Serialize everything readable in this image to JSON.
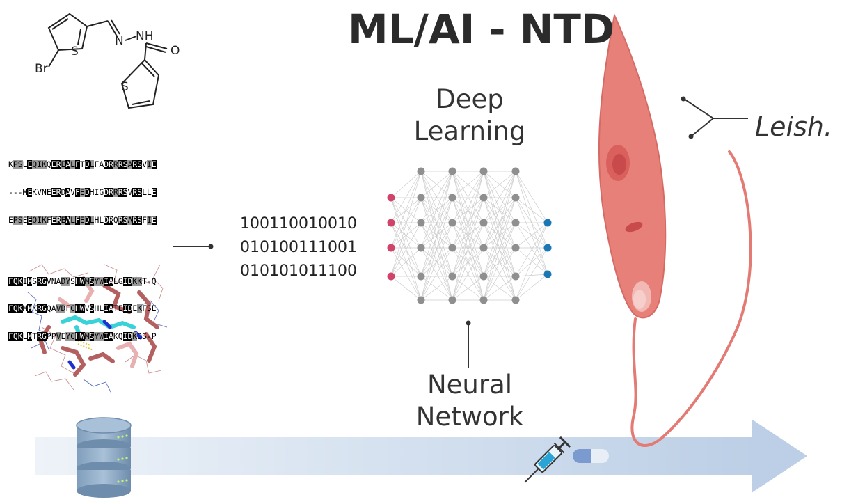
{
  "title": "ML/AI - NTD",
  "deep_learning_label": [
    "Deep",
    "Learning"
  ],
  "neural_network_label": [
    "Neural",
    "Network"
  ],
  "binary_lines": [
    "100110010010",
    "010100111001",
    "010101011100"
  ],
  "organism_label": "Leish.",
  "molecule_atoms": [
    "Br",
    "S",
    "N",
    "NH",
    "O",
    "S"
  ],
  "sequence_block_1": [
    "KPSLEQIKQEREALFTDLFADRRRSARSVIE",
    "---MEKVNEERDAVFEDHIGDRRRSVRSLLE",
    "EPSEEQIKFEREALFEDLHLDRQRSARSFIE"
  ],
  "sequence_block_2": [
    "FQKIMSRGVNADYSHWMSYWIALGIDKKT-Q",
    "FQKMMKRGQAVDFCHWVSHLIATEIDEKFSE",
    "FQKLMTRGPPVEYCHWMSYWIAKQIDKDS-P"
  ],
  "colors": {
    "arrow": "#c9d8ea",
    "parasite": "#e8807a",
    "input_node": "#d0446a",
    "hidden_node": "#8f8f8f",
    "output_node": "#1b78b4"
  }
}
